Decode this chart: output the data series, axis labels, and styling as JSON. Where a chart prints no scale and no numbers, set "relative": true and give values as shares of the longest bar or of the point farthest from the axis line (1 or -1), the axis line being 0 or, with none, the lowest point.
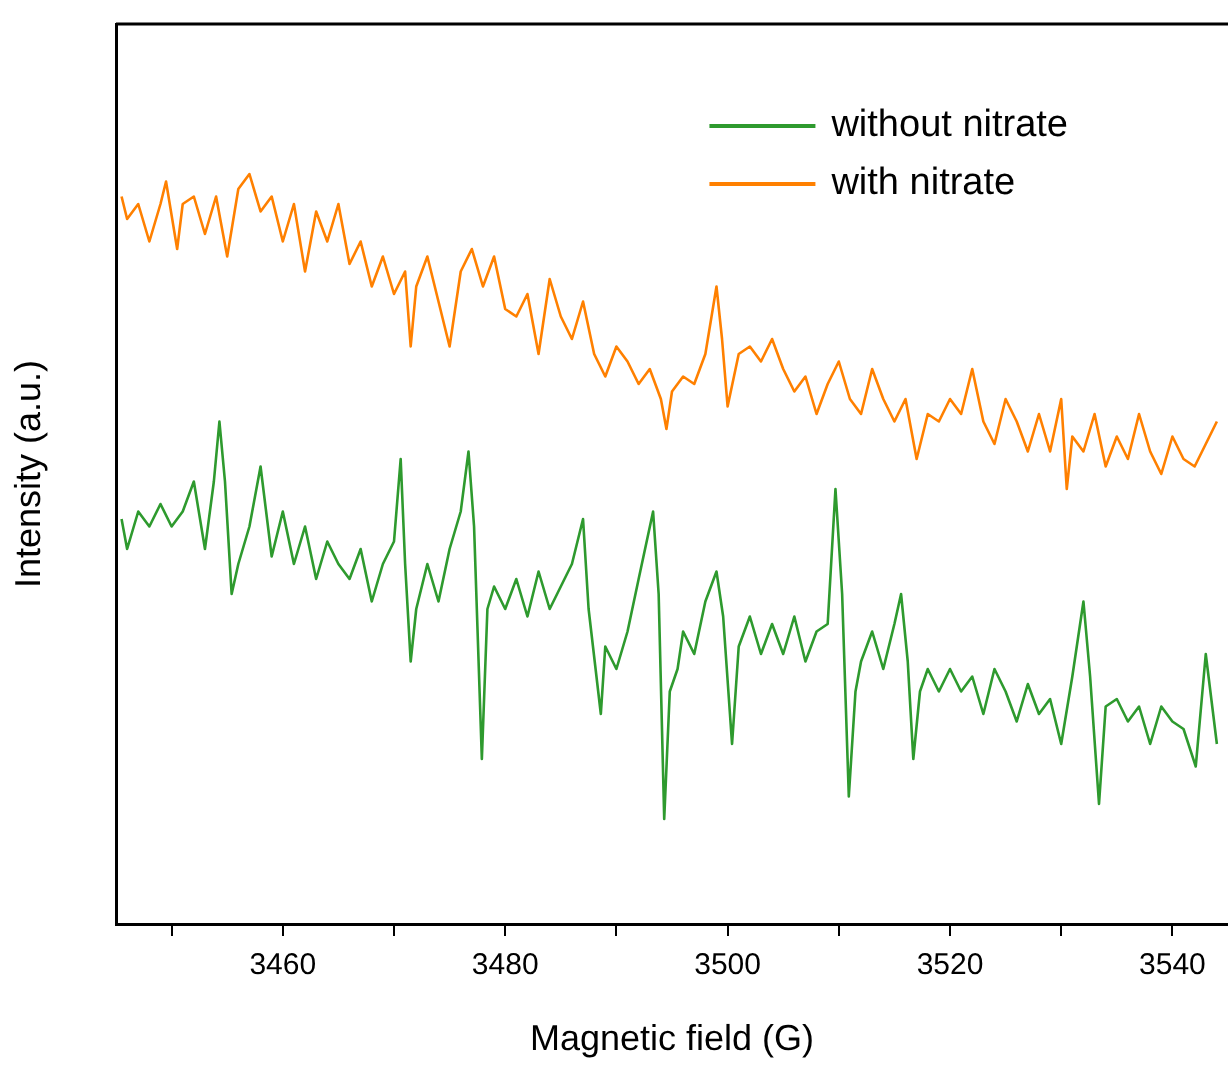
{
  "chart_data": {
    "type": "line",
    "xlabel": "Magnetic field (G)",
    "ylabel": "Intensity (a.u.)",
    "relative": true,
    "xlim": [
      3445,
      3545
    ],
    "xticks": [
      {
        "value": 3450,
        "label": null
      },
      3460,
      {
        "value": 3470,
        "label": null
      },
      3480,
      {
        "value": 3490,
        "label": null
      },
      3500,
      {
        "value": 3510,
        "label": null
      },
      3520,
      {
        "value": 3530,
        "label": null
      },
      3540
    ],
    "legend": "top right",
    "grid": false,
    "marker": "none",
    "line_style": "solid",
    "series": [
      {
        "name": "without nitrate",
        "color": "#2e9a2e",
        "x": [
          3445.5,
          3446,
          3447,
          3448,
          3449,
          3450,
          3451,
          3452,
          3453,
          3453.8,
          3454.3,
          3454.8,
          3455.4,
          3456,
          3457,
          3458,
          3459,
          3460,
          3461,
          3462,
          3463,
          3464,
          3465,
          3466,
          3467,
          3468,
          3469,
          3470,
          3470.6,
          3471,
          3471.5,
          3472,
          3473,
          3474,
          3475,
          3476,
          3476.7,
          3477.2,
          3477.9,
          3478.4,
          3479,
          3480,
          3481,
          3482,
          3483,
          3484,
          3485,
          3486,
          3487,
          3487.5,
          3488.6,
          3489,
          3490,
          3491,
          3492,
          3493.3,
          3493.8,
          3494.3,
          3494.8,
          3495.5,
          3496,
          3497,
          3498,
          3499,
          3499.6,
          3500.4,
          3501,
          3502,
          3503,
          3504,
          3505,
          3506,
          3507,
          3508,
          3509,
          3509.7,
          3510.3,
          3510.9,
          3511.5,
          3512,
          3513,
          3514,
          3515,
          3515.6,
          3516.2,
          3516.7,
          3517.3,
          3518,
          3519,
          3520,
          3521,
          3522,
          3523,
          3524,
          3525,
          3526,
          3527,
          3528,
          3529,
          3530,
          3531,
          3532,
          3532.6,
          3533.4,
          3534,
          3535,
          3536,
          3537,
          3538,
          3539,
          3540,
          3541,
          3542.1,
          3543,
          3544
        ],
        "values": [
          0.54,
          0.5,
          0.55,
          0.53,
          0.56,
          0.53,
          0.55,
          0.59,
          0.5,
          0.59,
          0.67,
          0.59,
          0.44,
          0.48,
          0.53,
          0.61,
          0.49,
          0.55,
          0.48,
          0.53,
          0.46,
          0.51,
          0.48,
          0.46,
          0.5,
          0.43,
          0.48,
          0.51,
          0.62,
          0.48,
          0.35,
          0.42,
          0.48,
          0.43,
          0.5,
          0.55,
          0.63,
          0.53,
          0.22,
          0.42,
          0.45,
          0.42,
          0.46,
          0.41,
          0.47,
          0.42,
          0.45,
          0.48,
          0.54,
          0.42,
          0.28,
          0.37,
          0.34,
          0.39,
          0.46,
          0.55,
          0.44,
          0.14,
          0.31,
          0.34,
          0.39,
          0.36,
          0.43,
          0.47,
          0.41,
          0.24,
          0.37,
          0.41,
          0.36,
          0.4,
          0.36,
          0.41,
          0.35,
          0.39,
          0.4,
          0.58,
          0.44,
          0.17,
          0.31,
          0.35,
          0.39,
          0.34,
          0.4,
          0.44,
          0.35,
          0.22,
          0.31,
          0.34,
          0.31,
          0.34,
          0.31,
          0.33,
          0.28,
          0.34,
          0.31,
          0.27,
          0.32,
          0.28,
          0.3,
          0.24,
          0.33,
          0.43,
          0.33,
          0.16,
          0.29,
          0.3,
          0.27,
          0.29,
          0.24,
          0.29,
          0.27,
          0.26,
          0.21,
          0.36,
          0.24
        ]
      },
      {
        "name": "with nitrate",
        "color": "#ff8000",
        "x": [
          3445.5,
          3446,
          3447,
          3448,
          3449,
          3449.5,
          3450.5,
          3451,
          3452,
          3453,
          3454,
          3455,
          3456,
          3457,
          3458,
          3459,
          3460,
          3461,
          3462,
          3463,
          3464,
          3465,
          3466,
          3467,
          3468,
          3469,
          3470,
          3471,
          3471.5,
          3472,
          3473,
          3474,
          3475,
          3476,
          3477,
          3478,
          3479,
          3480,
          3481,
          3482,
          3483,
          3484,
          3485,
          3486,
          3487,
          3488,
          3489,
          3490,
          3491,
          3492,
          3493,
          3494,
          3494.5,
          3495,
          3496,
          3497,
          3498,
          3499,
          3499.5,
          3500,
          3501,
          3502,
          3503,
          3504,
          3505,
          3506,
          3507,
          3508,
          3509,
          3510,
          3511,
          3512,
          3513,
          3514,
          3515,
          3516,
          3517,
          3518,
          3519,
          3520,
          3521,
          3522,
          3523,
          3524,
          3525,
          3526,
          3527,
          3528,
          3529,
          3530,
          3530.5,
          3531,
          3532,
          3533,
          3534,
          3535,
          3536,
          3537,
          3538,
          3539,
          3540,
          3541,
          3542,
          3543,
          3544
        ],
        "values": [
          0.97,
          0.94,
          0.96,
          0.91,
          0.96,
          0.99,
          0.9,
          0.96,
          0.97,
          0.92,
          0.97,
          0.89,
          0.98,
          1.0,
          0.95,
          0.97,
          0.91,
          0.96,
          0.87,
          0.95,
          0.91,
          0.96,
          0.88,
          0.91,
          0.85,
          0.89,
          0.84,
          0.87,
          0.77,
          0.85,
          0.89,
          0.83,
          0.77,
          0.87,
          0.9,
          0.85,
          0.89,
          0.82,
          0.81,
          0.84,
          0.76,
          0.86,
          0.81,
          0.78,
          0.83,
          0.76,
          0.73,
          0.77,
          0.75,
          0.72,
          0.74,
          0.7,
          0.66,
          0.71,
          0.73,
          0.72,
          0.76,
          0.85,
          0.78,
          0.69,
          0.76,
          0.77,
          0.75,
          0.78,
          0.74,
          0.71,
          0.73,
          0.68,
          0.72,
          0.75,
          0.7,
          0.68,
          0.74,
          0.7,
          0.67,
          0.7,
          0.62,
          0.68,
          0.67,
          0.7,
          0.68,
          0.74,
          0.67,
          0.64,
          0.7,
          0.67,
          0.63,
          0.68,
          0.63,
          0.7,
          0.58,
          0.65,
          0.63,
          0.68,
          0.61,
          0.65,
          0.62,
          0.68,
          0.63,
          0.6,
          0.65,
          0.62,
          0.61,
          0.64,
          0.67
        ]
      }
    ]
  }
}
